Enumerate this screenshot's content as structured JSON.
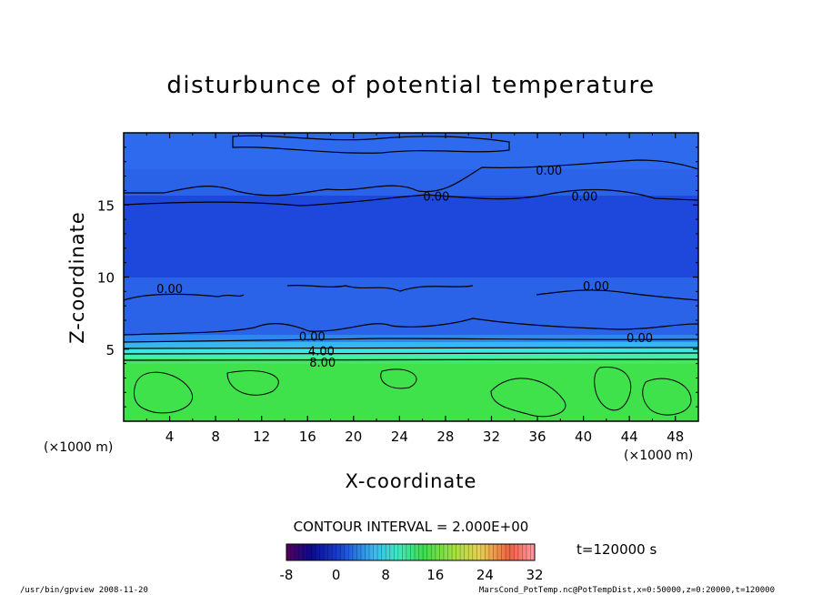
{
  "chart_data": {
    "type": "heatmap",
    "title": "disturbunce of potential temperature",
    "xlabel": "X-coordinate",
    "ylabel": "Z-coordinate",
    "x_unit_label": "(×1000 m)",
    "z_unit_label": "(×1000 m)",
    "xlim": [
      0,
      50
    ],
    "ylim": [
      0,
      20
    ],
    "x_ticks": [
      "4",
      "8",
      "12",
      "16",
      "20",
      "24",
      "28",
      "32",
      "36",
      "40",
      "44",
      "48"
    ],
    "y_ticks": [
      "5",
      "10",
      "15"
    ],
    "contour_interval_text": "CONTOUR INTERVAL = 2.000E+00",
    "time_label": "t=120000 s",
    "colorbar": {
      "range": [
        -8,
        32
      ],
      "ticks": [
        "-8",
        "0",
        "8",
        "16",
        "24",
        "32"
      ]
    },
    "contour_labels": [
      {
        "text": "0.00",
        "x": 37.0,
        "z": 17.4
      },
      {
        "text": "0.00",
        "x": 27.2,
        "z": 15.6
      },
      {
        "text": "0.00",
        "x": 40.1,
        "z": 15.6
      },
      {
        "text": "0.00",
        "x": 4.0,
        "z": 9.2
      },
      {
        "text": "0.00",
        "x": 41.1,
        "z": 9.4
      },
      {
        "text": "0.00",
        "x": 16.4,
        "z": 5.9
      },
      {
        "text": "4.00",
        "x": 17.2,
        "z": 4.9
      },
      {
        "text": "8.00",
        "x": 17.3,
        "z": 4.1
      },
      {
        "text": "0.00",
        "x": 44.9,
        "z": 5.8
      }
    ],
    "field_summary": [
      {
        "z_range": [
          0,
          4
        ],
        "value": 10
      },
      {
        "z_range": [
          4,
          5.5
        ],
        "value": 4
      },
      {
        "z_range": [
          5.5,
          20
        ],
        "value": 0
      }
    ]
  },
  "footer": {
    "left": "/usr/bin/gpview   2008-11-20",
    "right": "MarsCond_PotTemp.nc@PotTempDist,x=0:50000,z=0:20000,t=120000"
  }
}
